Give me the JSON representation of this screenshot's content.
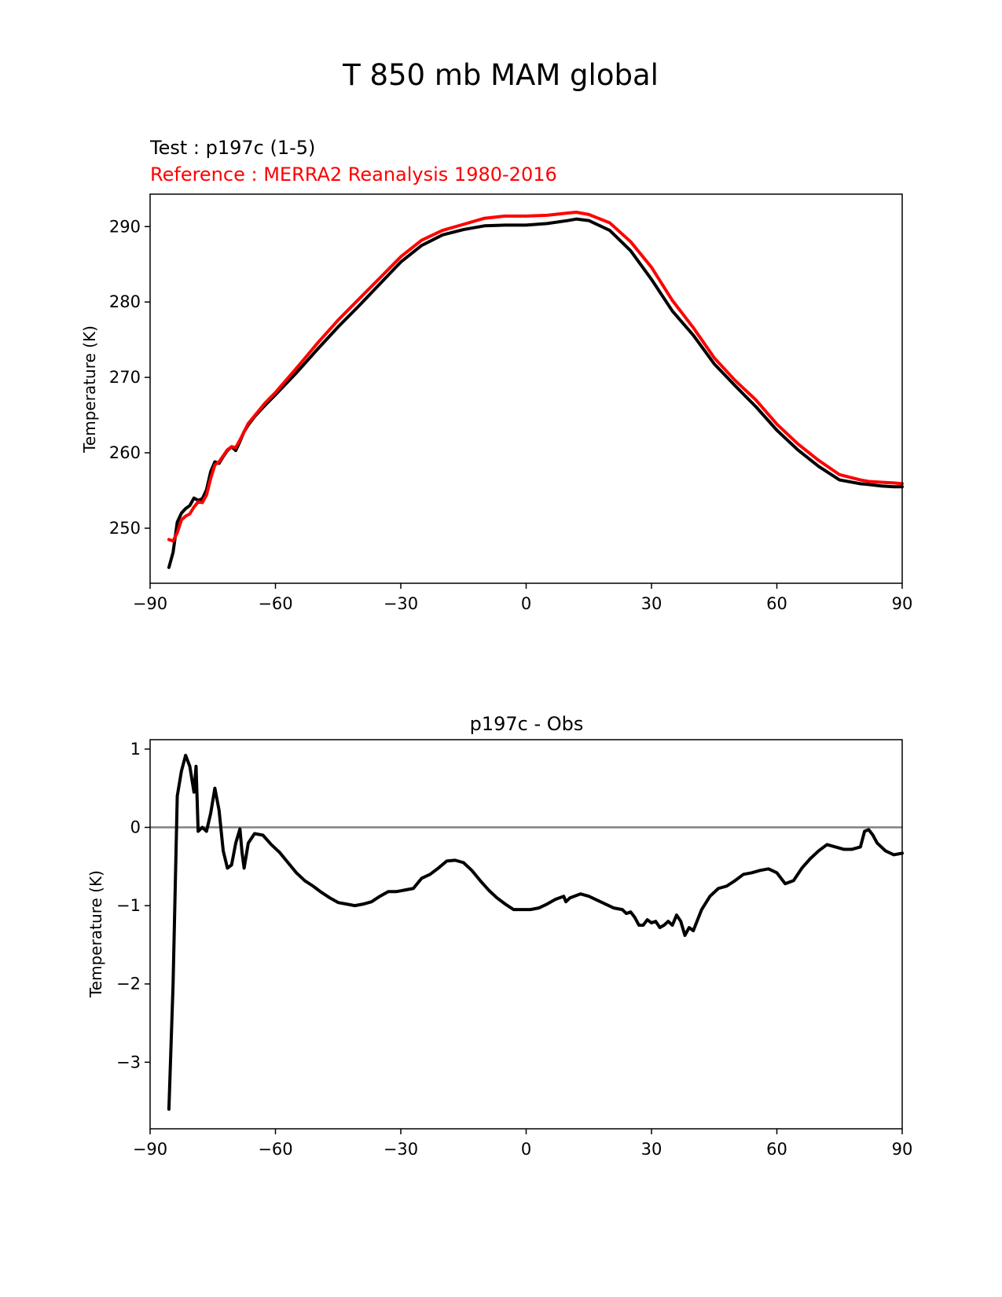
{
  "figure_title": "T 850 mb MAM global",
  "colors": {
    "test": "#000000",
    "reference": "#ff0000",
    "zero_line": "#808080"
  },
  "chart_data": [
    {
      "type": "line",
      "title": "",
      "test_label": "Test : p197c (1-5)",
      "reference_label": "Reference : MERRA2 Reanalysis 1980-2016",
      "xlabel": "",
      "ylabel": "Temperature (K)",
      "xlim": [
        -90,
        90
      ],
      "ylim": [
        242.7,
        294.3
      ],
      "xticks": [
        -90,
        -60,
        -30,
        0,
        30,
        60,
        90
      ],
      "yticks": [
        250,
        260,
        270,
        280,
        290
      ],
      "x": [
        -85.5,
        -84.5,
        -83.5,
        -82.5,
        -81.5,
        -80.5,
        -79.5,
        -78.5,
        -77.5,
        -76.5,
        -75.5,
        -74.5,
        -73.5,
        -72.5,
        -71.5,
        -70.5,
        -69.5,
        -68.5,
        -67.5,
        -66.5,
        -65,
        -62.5,
        -60,
        -55,
        -50,
        -45,
        -40,
        -35,
        -30,
        -25,
        -20,
        -15,
        -10,
        -5,
        0,
        5,
        10,
        12,
        15,
        20,
        25,
        30,
        35,
        40,
        45,
        50,
        55,
        60,
        65,
        70,
        75,
        80,
        82,
        85,
        88,
        90
      ],
      "series": [
        {
          "name": "Test",
          "values": [
            244.8,
            246.8,
            250.8,
            252.0,
            252.6,
            253.0,
            254.0,
            253.7,
            253.9,
            255.1,
            257.5,
            258.8,
            258.6,
            259.5,
            260.3,
            260.8,
            260.3,
            261.5,
            262.8,
            263.7,
            264.8,
            266.3,
            267.7,
            270.6,
            273.7,
            276.7,
            279.5,
            282.4,
            285.3,
            287.5,
            288.9,
            289.6,
            290.1,
            290.2,
            290.2,
            290.4,
            290.8,
            291.0,
            290.8,
            289.5,
            286.8,
            283.0,
            278.8,
            275.6,
            271.8,
            268.9,
            266.1,
            263.0,
            260.4,
            258.2,
            256.4,
            255.9,
            255.8,
            255.6,
            255.5,
            255.5
          ]
        },
        {
          "name": "Reference",
          "values": [
            248.5,
            248.3,
            249.4,
            251.1,
            251.6,
            251.9,
            252.8,
            253.5,
            253.4,
            254.4,
            256.6,
            258.4,
            258.8,
            259.6,
            260.4,
            260.8,
            260.7,
            261.7,
            262.8,
            263.9,
            264.9,
            266.6,
            268.0,
            271.2,
            274.5,
            277.6,
            280.4,
            283.2,
            286.0,
            288.2,
            289.5,
            290.3,
            291.1,
            291.4,
            291.4,
            291.5,
            291.8,
            291.9,
            291.6,
            290.5,
            288.0,
            284.6,
            280.2,
            276.6,
            272.6,
            269.6,
            267.0,
            263.8,
            261.2,
            259.0,
            257.1,
            256.4,
            256.2,
            256.1,
            256.0,
            255.9
          ]
        }
      ]
    },
    {
      "type": "line",
      "title": "p197c - Obs",
      "xlabel": "",
      "ylabel": "Temperature (K)",
      "xlim": [
        -90,
        90
      ],
      "ylim": [
        -3.85,
        1.12
      ],
      "xticks": [
        -90,
        -60,
        -30,
        0,
        30,
        60,
        90
      ],
      "yticks": [
        -3,
        -2,
        -1,
        0,
        1
      ],
      "zero_line": 0,
      "x": [
        -85.5,
        -84.5,
        -83.5,
        -82.5,
        -81.5,
        -80.5,
        -79.5,
        -79,
        -78.5,
        -77.5,
        -76.5,
        -75.5,
        -74.5,
        -73.5,
        -72.5,
        -71.5,
        -70.5,
        -69.5,
        -68.5,
        -68,
        -67.5,
        -66.5,
        -65,
        -63,
        -61,
        -59,
        -57,
        -55,
        -53,
        -51,
        -49,
        -47,
        -45,
        -43,
        -41,
        -39,
        -37,
        -35,
        -33,
        -31,
        -29,
        -27,
        -25,
        -23,
        -21,
        -19,
        -17,
        -15,
        -13,
        -11,
        -9,
        -7,
        -5,
        -3,
        -1,
        1,
        3,
        5,
        7,
        9,
        9.5,
        10.5,
        11.5,
        13,
        15,
        17,
        19,
        21,
        23,
        24,
        25,
        26,
        27,
        28,
        29,
        30,
        31,
        32,
        33,
        34,
        35,
        36,
        37,
        38,
        39,
        40,
        42,
        44,
        46,
        48,
        50,
        52,
        54,
        56,
        58,
        60,
        62,
        64,
        66,
        68,
        70,
        72,
        74,
        76,
        78,
        80,
        81,
        82,
        83,
        84,
        86,
        88,
        90
      ],
      "series": [
        {
          "name": "p197c - Obs",
          "values": [
            -3.6,
            -2.0,
            0.4,
            0.72,
            0.92,
            0.78,
            0.45,
            0.78,
            -0.05,
            0.0,
            -0.05,
            0.18,
            0.5,
            0.22,
            -0.3,
            -0.52,
            -0.48,
            -0.2,
            -0.02,
            -0.32,
            -0.52,
            -0.2,
            -0.08,
            -0.1,
            -0.22,
            -0.32,
            -0.45,
            -0.58,
            -0.68,
            -0.75,
            -0.83,
            -0.9,
            -0.96,
            -0.98,
            -1.0,
            -0.98,
            -0.95,
            -0.88,
            -0.82,
            -0.82,
            -0.8,
            -0.78,
            -0.65,
            -0.6,
            -0.52,
            -0.43,
            -0.42,
            -0.45,
            -0.55,
            -0.68,
            -0.8,
            -0.9,
            -0.98,
            -1.05,
            -1.05,
            -1.05,
            -1.03,
            -0.98,
            -0.92,
            -0.88,
            -0.95,
            -0.9,
            -0.88,
            -0.85,
            -0.88,
            -0.93,
            -0.98,
            -1.03,
            -1.05,
            -1.1,
            -1.08,
            -1.15,
            -1.25,
            -1.25,
            -1.18,
            -1.22,
            -1.2,
            -1.28,
            -1.25,
            -1.2,
            -1.25,
            -1.12,
            -1.2,
            -1.38,
            -1.28,
            -1.32,
            -1.05,
            -0.88,
            -0.78,
            -0.75,
            -0.68,
            -0.6,
            -0.58,
            -0.55,
            -0.53,
            -0.58,
            -0.72,
            -0.68,
            -0.52,
            -0.4,
            -0.3,
            -0.22,
            -0.25,
            -0.28,
            -0.28,
            -0.25,
            -0.05,
            -0.03,
            -0.1,
            -0.2,
            -0.3,
            -0.35,
            -0.33
          ]
        }
      ]
    }
  ]
}
